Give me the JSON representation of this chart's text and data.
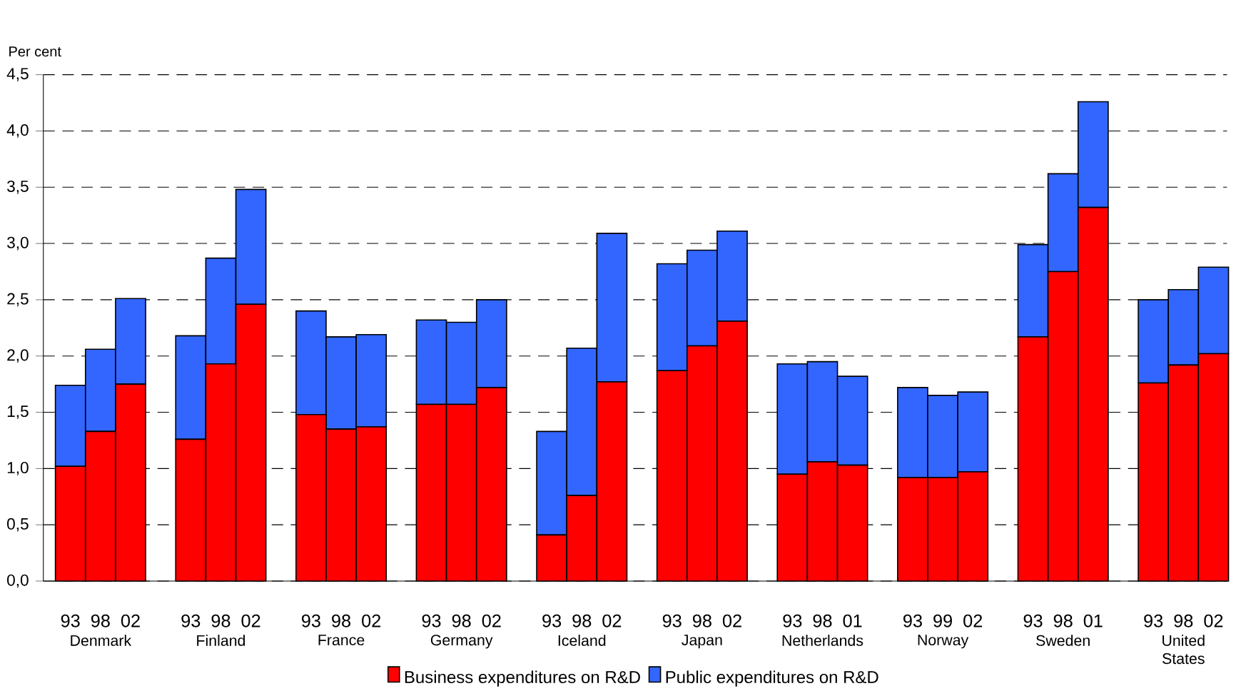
{
  "chart_data": {
    "type": "bar",
    "stacked": true,
    "ylabel": "Per cent",
    "categories": [
      "93",
      "98",
      "02",
      null,
      "93",
      "98",
      "02",
      null,
      "93",
      "98",
      "02",
      null,
      "93",
      "98",
      "02",
      null,
      "93",
      "98",
      "02",
      null,
      "93",
      "98",
      "02",
      null,
      "93",
      "98",
      "01",
      null,
      "93",
      "99",
      "02",
      null,
      "93",
      "98",
      "01",
      null,
      "93",
      "98",
      "02"
    ],
    "series": [
      {
        "name": "Business expenditures on R&D",
        "color": "#ff0000",
        "values": [
          1.02,
          1.33,
          1.75,
          null,
          1.26,
          1.93,
          2.46,
          null,
          1.48,
          1.35,
          1.37,
          null,
          1.57,
          1.57,
          1.72,
          null,
          0.41,
          0.76,
          1.77,
          null,
          1.87,
          2.09,
          2.31,
          null,
          0.95,
          1.06,
          1.03,
          null,
          0.92,
          0.92,
          0.97,
          null,
          2.17,
          2.75,
          3.32,
          null,
          1.76,
          1.92,
          2.02
        ]
      },
      {
        "name": "Public expenditures on R&D",
        "color": "#3366ff",
        "values": [
          0.72,
          0.73,
          0.76,
          null,
          0.92,
          0.94,
          1.02,
          null,
          0.92,
          0.82,
          0.82,
          null,
          0.75,
          0.73,
          0.78,
          null,
          0.92,
          1.31,
          1.32,
          null,
          0.95,
          0.85,
          0.8,
          null,
          0.98,
          0.89,
          0.79,
          null,
          0.8,
          0.73,
          0.71,
          null,
          0.82,
          0.87,
          0.94,
          null,
          0.74,
          0.67,
          0.77
        ]
      }
    ],
    "ylim": [
      0,
      4.5
    ],
    "yticks": [
      {
        "value": 0,
        "label": "0,0"
      },
      {
        "value": 0.5,
        "label": "0,5"
      },
      {
        "value": 1,
        "label": "1,0"
      },
      {
        "value": 1.5,
        "label": "1,5"
      },
      {
        "value": 2,
        "label": "2,0"
      },
      {
        "value": 2.5,
        "label": "2,5"
      },
      {
        "value": 3,
        "label": "3,0"
      },
      {
        "value": 3.5,
        "label": "3,5"
      },
      {
        "value": 4,
        "label": "4,0"
      },
      {
        "value": 4.5,
        "label": "4,5"
      }
    ],
    "grid": "y",
    "legend": "bottom",
    "annotations": [
      "Denmark",
      "Finland",
      "France",
      "Germany",
      "Iceland",
      "Japan",
      "Netherlands",
      "Norway",
      "Sweden",
      "United States"
    ]
  }
}
